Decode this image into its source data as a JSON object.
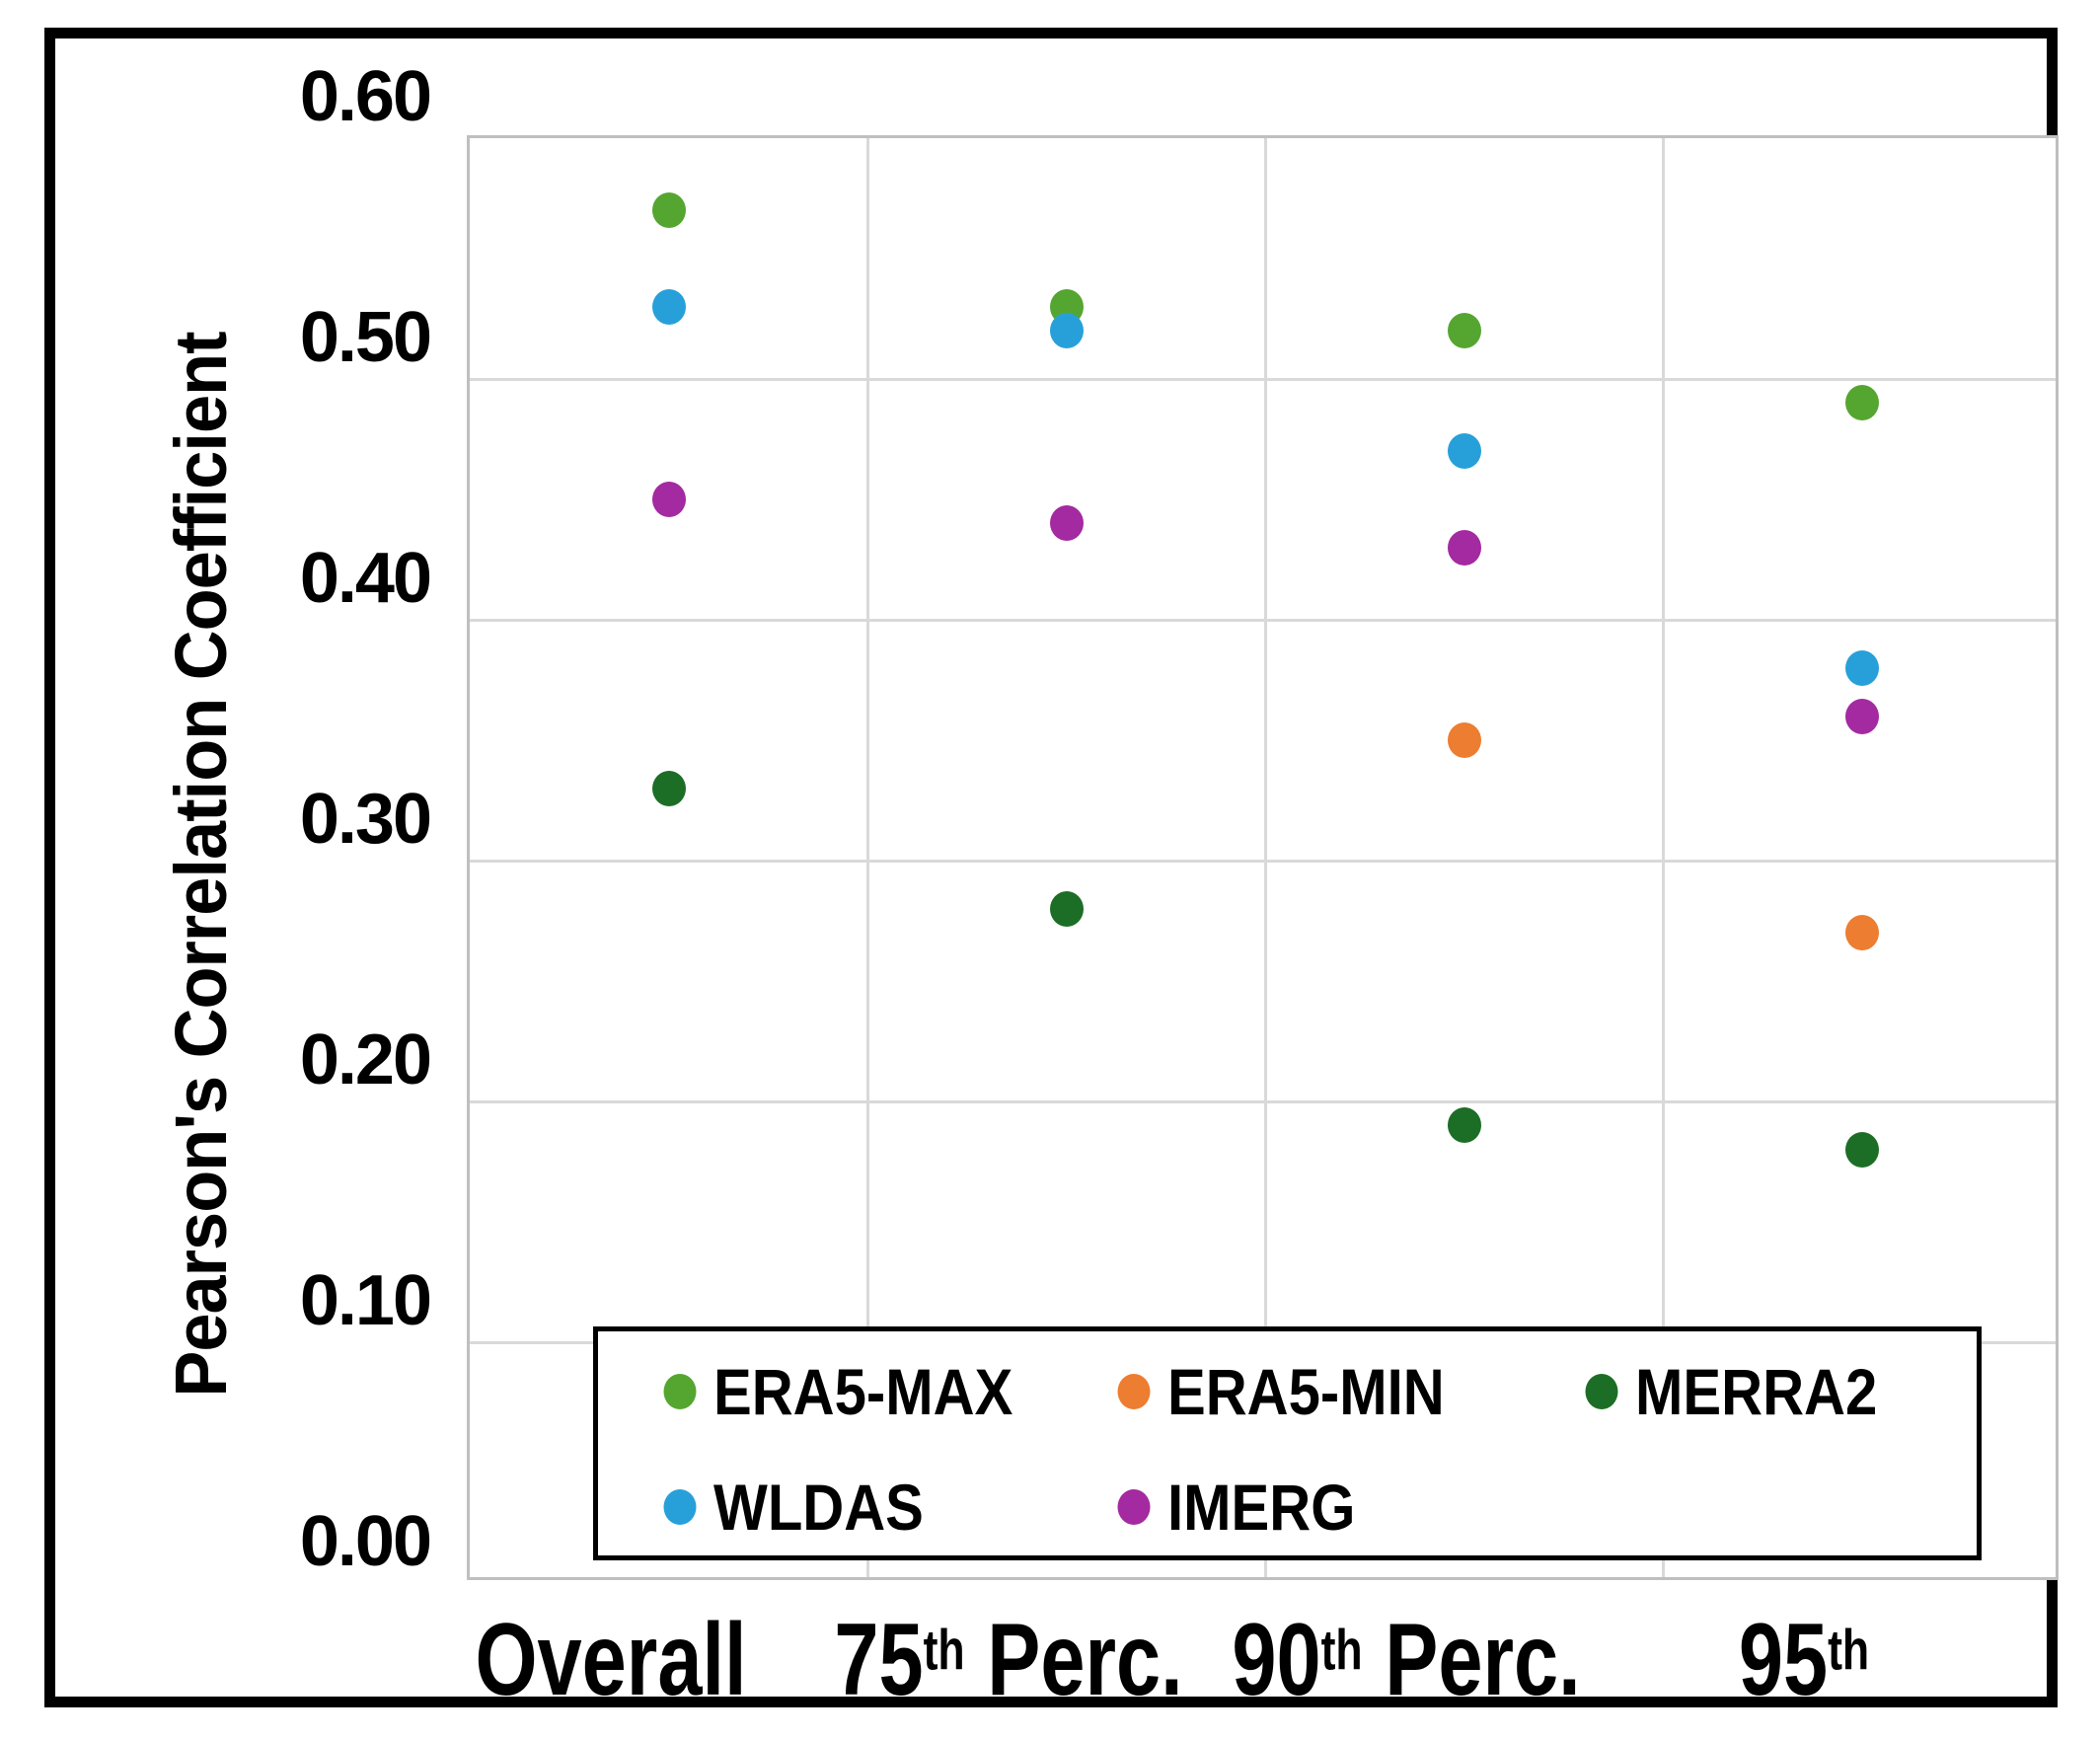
{
  "chart_data": {
    "type": "scatter",
    "title": "",
    "xlabel": "",
    "ylabel": "Pearson's Correlation Coefficient",
    "ylim": [
      0.0,
      0.6
    ],
    "ytick_step": 0.1,
    "ytick_labels": [
      "0.00",
      "0.10",
      "0.20",
      "0.30",
      "0.40",
      "0.50",
      "0.60"
    ],
    "grid": true,
    "categories": [
      "Overall",
      "75th Perc.",
      "90th Perc.",
      "95th"
    ],
    "categories_display": [
      {
        "base": "Overall",
        "sup": "",
        "rest": ""
      },
      {
        "base": "75",
        "sup": "th",
        "rest": " Perc."
      },
      {
        "base": "90",
        "sup": "th",
        "rest": " Perc."
      },
      {
        "base": "95",
        "sup": "th",
        "rest": ""
      }
    ],
    "series": [
      {
        "name": "ERA5-MAX",
        "color": "#55A630",
        "values": [
          0.57,
          0.53,
          0.52,
          0.49
        ]
      },
      {
        "name": "ERA5-MIN",
        "color": "#ED7D31",
        "values": [
          null,
          null,
          0.35,
          0.27
        ]
      },
      {
        "name": "MERRA2",
        "color": "#1C6E26",
        "values": [
          0.33,
          0.28,
          0.19,
          0.18
        ]
      },
      {
        "name": "WLDAS",
        "color": "#27A0DA",
        "values": [
          0.53,
          0.52,
          0.47,
          0.38
        ]
      },
      {
        "name": "IMERG",
        "color": "#A32AA0",
        "values": [
          0.45,
          0.44,
          0.43,
          0.36
        ]
      }
    ],
    "legend": {
      "position": "bottom-inside",
      "rows": [
        [
          "ERA5-MAX",
          "ERA5-MIN",
          "MERRA2"
        ],
        [
          "WLDAS",
          "IMERG"
        ]
      ]
    }
  },
  "colors": {
    "background": "#FFFFFF",
    "frame": "#000000",
    "plot_border": "#BFBFBF",
    "gridline": "#D9D9D9",
    "text": "#000000"
  }
}
